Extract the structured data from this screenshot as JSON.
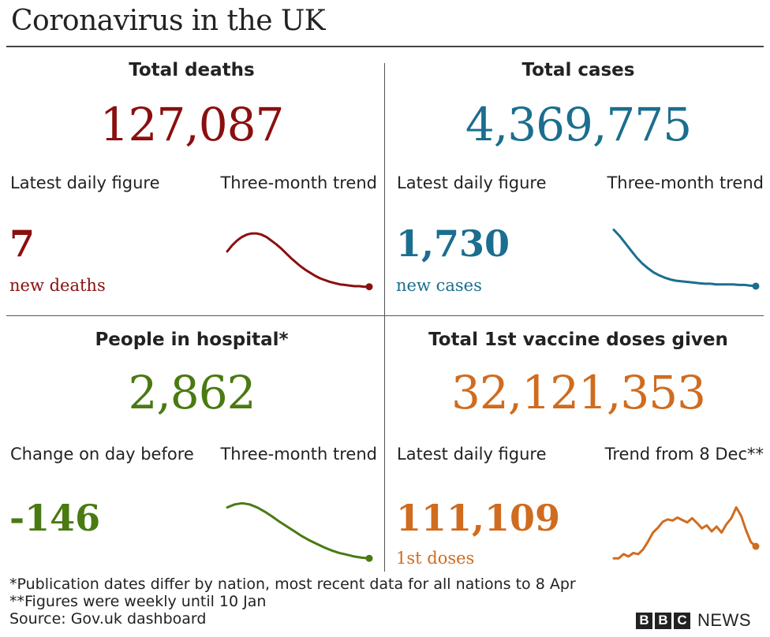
{
  "title": "Coronavirus in the UK",
  "chart_data": [
    {
      "type": "line",
      "title": "Total deaths",
      "total": "127,087",
      "left_label": "Latest daily figure",
      "right_label": "Three-month trend",
      "daily_value": "7",
      "daily_unit": "new deaths",
      "color": "#8b0f0f",
      "series": [
        {
          "values": [
            0.62,
            0.72,
            0.8,
            0.86,
            0.9,
            0.92,
            0.92,
            0.9,
            0.86,
            0.8,
            0.74,
            0.67,
            0.59,
            0.51,
            0.44,
            0.37,
            0.31,
            0.26,
            0.21,
            0.17,
            0.14,
            0.11,
            0.09,
            0.07,
            0.06,
            0.05,
            0.04,
            0.04,
            0.03,
            0.03
          ]
        }
      ]
    },
    {
      "type": "line",
      "title": "Total cases",
      "total": "4,369,775",
      "left_label": "Latest daily figure",
      "right_label": "Three-month trend",
      "daily_value": "1,730",
      "daily_unit": "new cases",
      "color": "#1b6e8f",
      "series": [
        {
          "values": [
            0.98,
            0.88,
            0.76,
            0.64,
            0.52,
            0.42,
            0.34,
            0.27,
            0.22,
            0.18,
            0.15,
            0.13,
            0.12,
            0.11,
            0.1,
            0.09,
            0.08,
            0.08,
            0.07,
            0.07,
            0.07,
            0.07,
            0.06,
            0.06,
            0.05,
            0.04
          ]
        }
      ]
    },
    {
      "type": "line",
      "title": "People in hospital*",
      "total": "2,862",
      "left_label": "Change on day before",
      "right_label": "Three-month trend",
      "daily_value": "-146",
      "daily_unit": "",
      "color": "#4a7a12",
      "series": [
        {
          "values": [
            0.9,
            0.95,
            0.97,
            0.95,
            0.9,
            0.83,
            0.75,
            0.66,
            0.58,
            0.5,
            0.42,
            0.35,
            0.29,
            0.23,
            0.18,
            0.14,
            0.11,
            0.08,
            0.06,
            0.05
          ]
        }
      ]
    },
    {
      "type": "line",
      "title": "Total 1st vaccine doses given",
      "total": "32,121,353",
      "left_label": "Latest daily figure",
      "right_label": "Trend from 8 Dec**",
      "daily_value": "111,109",
      "daily_unit": "1st doses",
      "color": "#d06c1f",
      "series": [
        {
          "values": [
            0.05,
            0.05,
            0.12,
            0.08,
            0.14,
            0.12,
            0.2,
            0.33,
            0.48,
            0.56,
            0.66,
            0.7,
            0.68,
            0.73,
            0.69,
            0.65,
            0.72,
            0.64,
            0.55,
            0.6,
            0.5,
            0.58,
            0.48,
            0.62,
            0.72,
            0.9,
            0.76,
            0.52,
            0.32,
            0.25
          ]
        }
      ]
    }
  ],
  "footnotes": [
    "*Publication dates differ by nation, most recent data for all nations to 8 Apr",
    "**Figures were weekly until 10 Jan",
    "Source: Gov.uk dashboard"
  ],
  "branding": {
    "box1": "B",
    "box2": "B",
    "box3": "C",
    "news": "NEWS"
  }
}
